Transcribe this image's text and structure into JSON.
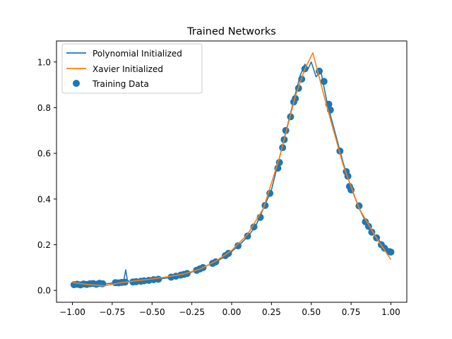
{
  "chart_data": {
    "type": "line",
    "title": "Trained Networks",
    "xlabel": "",
    "ylabel": "",
    "xlim": [
      -1.1,
      1.1
    ],
    "ylim": [
      -0.052,
      1.092
    ],
    "x_ticks": [
      -1.0,
      -0.75,
      -0.5,
      -0.25,
      0.0,
      0.25,
      0.5,
      0.75,
      1.0
    ],
    "x_tick_labels": [
      "−1.00",
      "−0.75",
      "−0.50",
      "−0.25",
      "0.00",
      "0.25",
      "0.50",
      "0.75",
      "1.00"
    ],
    "y_ticks": [
      0.0,
      0.2,
      0.4,
      0.6,
      0.8,
      1.0
    ],
    "y_tick_labels": [
      "0.0",
      "0.2",
      "0.4",
      "0.6",
      "0.8",
      "1.0"
    ],
    "grid": false,
    "legend_position": "upper-left",
    "legend": [
      {
        "label": "Polynomial Initialized",
        "kind": "line",
        "color": "#1f77b4"
      },
      {
        "label": "Xavier Initialized",
        "kind": "line",
        "color": "#ff7f0e"
      },
      {
        "label": "Training Data",
        "kind": "scatter",
        "color": "#1f77b4"
      }
    ],
    "series": [
      {
        "name": "Polynomial Initialized",
        "kind": "line",
        "color": "#1f77b4",
        "points": [
          [
            -1.0,
            0.03
          ],
          [
            -0.95,
            0.028
          ],
          [
            -0.9,
            0.027
          ],
          [
            -0.85,
            0.029
          ],
          [
            -0.8,
            0.028
          ],
          [
            -0.75,
            0.032
          ],
          [
            -0.7,
            0.033
          ],
          [
            -0.68,
            0.035
          ],
          [
            -0.665,
            0.09
          ],
          [
            -0.655,
            0.045
          ],
          [
            -0.64,
            0.038
          ],
          [
            -0.6,
            0.037
          ],
          [
            -0.55,
            0.04
          ],
          [
            -0.5,
            0.045
          ],
          [
            -0.45,
            0.05
          ],
          [
            -0.4,
            0.055
          ],
          [
            -0.35,
            0.062
          ],
          [
            -0.3,
            0.07
          ],
          [
            -0.25,
            0.08
          ],
          [
            -0.2,
            0.095
          ],
          [
            -0.15,
            0.11
          ],
          [
            -0.1,
            0.125
          ],
          [
            -0.05,
            0.145
          ],
          [
            0.0,
            0.17
          ],
          [
            0.05,
            0.2
          ],
          [
            0.1,
            0.235
          ],
          [
            0.15,
            0.28
          ],
          [
            0.2,
            0.36
          ],
          [
            0.25,
            0.44
          ],
          [
            0.3,
            0.58
          ],
          [
            0.35,
            0.72
          ],
          [
            0.4,
            0.86
          ],
          [
            0.43,
            0.94
          ],
          [
            0.46,
            0.99
          ],
          [
            0.48,
            0.97
          ],
          [
            0.5,
            1.0
          ],
          [
            0.53,
            0.935
          ],
          [
            0.56,
            0.96
          ],
          [
            0.6,
            0.82
          ],
          [
            0.65,
            0.69
          ],
          [
            0.7,
            0.56
          ],
          [
            0.75,
            0.45
          ],
          [
            0.8,
            0.36
          ],
          [
            0.85,
            0.29
          ],
          [
            0.9,
            0.24
          ],
          [
            0.95,
            0.2
          ],
          [
            1.0,
            0.17
          ]
        ]
      },
      {
        "name": "Xavier Initialized",
        "kind": "line",
        "color": "#ff7f0e",
        "points": [
          [
            -1.0,
            0.035
          ],
          [
            -0.9,
            0.025
          ],
          [
            -0.8,
            0.02
          ],
          [
            -0.7,
            0.033
          ],
          [
            -0.6,
            0.042
          ],
          [
            -0.5,
            0.05
          ],
          [
            -0.4,
            0.06
          ],
          [
            -0.3,
            0.072
          ],
          [
            -0.2,
            0.093
          ],
          [
            -0.1,
            0.128
          ],
          [
            0.0,
            0.175
          ],
          [
            0.1,
            0.245
          ],
          [
            0.2,
            0.36
          ],
          [
            0.3,
            0.58
          ],
          [
            0.4,
            0.85
          ],
          [
            0.46,
            0.97
          ],
          [
            0.51,
            1.04
          ],
          [
            0.6,
            0.8
          ],
          [
            0.7,
            0.55
          ],
          [
            0.8,
            0.36
          ],
          [
            0.9,
            0.24
          ],
          [
            1.0,
            0.135
          ]
        ]
      },
      {
        "name": "Training Data",
        "kind": "scatter",
        "color": "#1f77b4",
        "points": [
          [
            -0.99,
            0.025
          ],
          [
            -0.97,
            0.027
          ],
          [
            -0.95,
            0.024
          ],
          [
            -0.93,
            0.028
          ],
          [
            -0.91,
            0.026
          ],
          [
            -0.89,
            0.029
          ],
          [
            -0.87,
            0.03
          ],
          [
            -0.85,
            0.027
          ],
          [
            -0.83,
            0.031
          ],
          [
            -0.81,
            0.029
          ],
          [
            -0.73,
            0.034
          ],
          [
            -0.71,
            0.033
          ],
          [
            -0.69,
            0.035
          ],
          [
            -0.67,
            0.036
          ],
          [
            -0.62,
            0.037
          ],
          [
            -0.6,
            0.038
          ],
          [
            -0.57,
            0.04
          ],
          [
            -0.55,
            0.042
          ],
          [
            -0.52,
            0.044
          ],
          [
            -0.49,
            0.047
          ],
          [
            -0.46,
            0.049
          ],
          [
            -0.38,
            0.058
          ],
          [
            -0.35,
            0.062
          ],
          [
            -0.32,
            0.067
          ],
          [
            -0.3,
            0.07
          ],
          [
            -0.28,
            0.074
          ],
          [
            -0.22,
            0.088
          ],
          [
            -0.2,
            0.094
          ],
          [
            -0.18,
            0.1
          ],
          [
            -0.12,
            0.118
          ],
          [
            -0.1,
            0.125
          ],
          [
            -0.04,
            0.152
          ],
          [
            -0.02,
            0.162
          ],
          [
            0.04,
            0.195
          ],
          [
            0.1,
            0.238
          ],
          [
            0.14,
            0.278
          ],
          [
            0.18,
            0.32
          ],
          [
            0.21,
            0.372
          ],
          [
            0.24,
            0.425
          ],
          [
            0.29,
            0.535
          ],
          [
            0.3,
            0.56
          ],
          [
            0.32,
            0.625
          ],
          [
            0.33,
            0.66
          ],
          [
            0.34,
            0.7
          ],
          [
            0.37,
            0.76
          ],
          [
            0.39,
            0.825
          ],
          [
            0.4,
            0.84
          ],
          [
            0.42,
            0.885
          ],
          [
            0.44,
            0.925
          ],
          [
            0.46,
            0.97
          ],
          [
            0.55,
            0.96
          ],
          [
            0.58,
            0.915
          ],
          [
            0.61,
            0.815
          ],
          [
            0.62,
            0.79
          ],
          [
            0.68,
            0.61
          ],
          [
            0.72,
            0.52
          ],
          [
            0.73,
            0.5
          ],
          [
            0.74,
            0.455
          ],
          [
            0.75,
            0.44
          ],
          [
            0.8,
            0.37
          ],
          [
            0.84,
            0.3
          ],
          [
            0.86,
            0.28
          ],
          [
            0.88,
            0.255
          ],
          [
            0.91,
            0.23
          ],
          [
            0.94,
            0.2
          ],
          [
            0.96,
            0.185
          ],
          [
            0.99,
            0.17
          ],
          [
            1.0,
            0.168
          ]
        ]
      }
    ]
  }
}
